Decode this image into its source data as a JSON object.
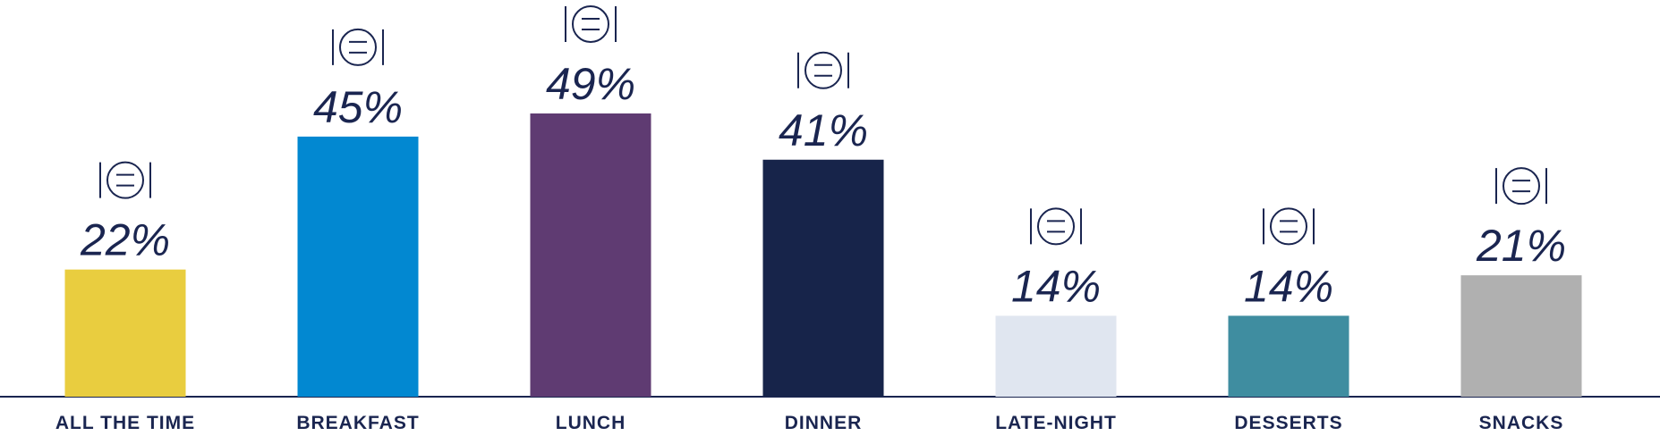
{
  "chart_data": {
    "type": "bar",
    "categories": [
      "ALL THE TIME",
      "BREAKFAST",
      "LUNCH",
      "DINNER",
      "LATE-NIGHT",
      "DESSERTS",
      "SNACKS"
    ],
    "values": [
      22,
      45,
      49,
      41,
      14,
      14,
      21
    ],
    "value_labels": [
      "22%",
      "45%",
      "49%",
      "41%",
      "14%",
      "14%",
      "21%"
    ],
    "colors": [
      "#e9cd3f",
      "#0288d1",
      "#5f3b72",
      "#17244a",
      "#e0e6f0",
      "#3f8da0",
      "#b0b0b0"
    ]
  }
}
